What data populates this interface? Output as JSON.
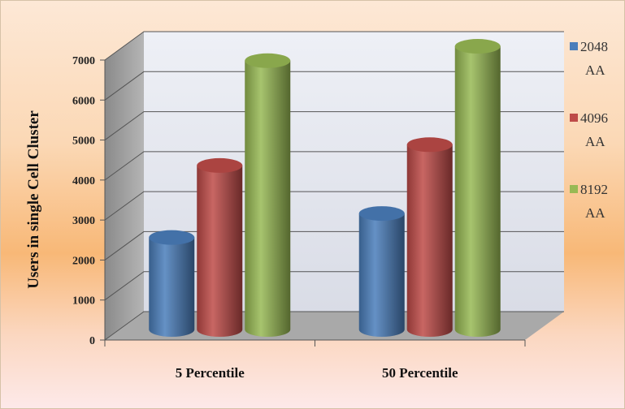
{
  "chart_data": {
    "type": "bar",
    "title": "",
    "xlabel": "",
    "ylabel": "Users in single Cell Cluster",
    "ylim": [
      0,
      7000
    ],
    "yticks": [
      0,
      1000,
      2000,
      3000,
      4000,
      5000,
      6000,
      7000
    ],
    "categories": [
      "5 Percentile",
      "50 Percentile"
    ],
    "series": [
      {
        "name": "2048 AA",
        "values": [
          2300,
          2900
        ],
        "color": "#4a7ebb"
      },
      {
        "name": "4096 AA",
        "values": [
          4100,
          4620
        ],
        "color": "#be4b48"
      },
      {
        "name": "8192 AA",
        "values": [
          6720,
          7080
        ],
        "color": "#98b954"
      }
    ],
    "grid": true,
    "legend": "right",
    "style": "3d-cylinder"
  }
}
